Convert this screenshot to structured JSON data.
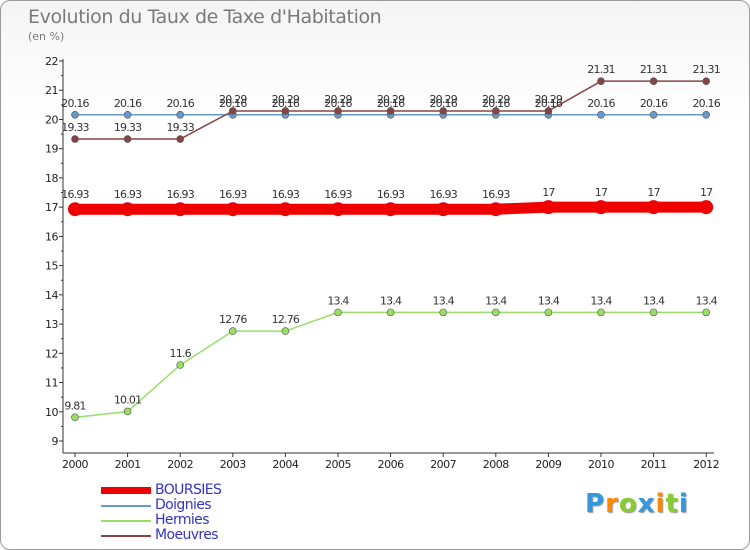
{
  "chart_data": {
    "type": "line",
    "title": "Evolution du Taux de Taxe d'Habitation",
    "ylabel": "(en %)",
    "xlabel": "",
    "ylim": [
      9,
      22
    ],
    "yticks": [
      9,
      10,
      11,
      12,
      13,
      14,
      15,
      16,
      17,
      18,
      19,
      20,
      21,
      22
    ],
    "categories": [
      "2000",
      "2001",
      "2002",
      "2003",
      "2004",
      "2005",
      "2006",
      "2007",
      "2008",
      "2009",
      "2010",
      "2011",
      "2012"
    ],
    "series": [
      {
        "name": "BOURSIES",
        "color": "#ee0000",
        "values": [
          16.93,
          16.93,
          16.93,
          16.93,
          16.93,
          16.93,
          16.93,
          16.93,
          16.93,
          17,
          17,
          17,
          17
        ],
        "labels": [
          "16.93",
          "16.93",
          "16.93",
          "16.93",
          "16.93",
          "16.93",
          "16.93",
          "16.93",
          "16.93",
          "17",
          "17",
          "17",
          "17"
        ]
      },
      {
        "name": "Doignies",
        "color": "#6699cc",
        "values": [
          20.16,
          20.16,
          20.16,
          20.16,
          20.16,
          20.16,
          20.16,
          20.16,
          20.16,
          20.16,
          20.16,
          20.16,
          20.16
        ],
        "labels": [
          "20.16",
          "20.16",
          "20.16",
          "20.16",
          "20.16",
          "20.16",
          "20.16",
          "20.16",
          "20.16",
          "20.16",
          "20.16",
          "20.16",
          "20.16"
        ]
      },
      {
        "name": "Hermies",
        "color": "#99dd66",
        "values": [
          9.81,
          10.01,
          11.6,
          12.76,
          12.76,
          13.4,
          13.4,
          13.4,
          13.4,
          13.4,
          13.4,
          13.4,
          13.4
        ],
        "labels": [
          "9.81",
          "10.01",
          "11.6",
          "12.76",
          "12.76",
          "13.4",
          "13.4",
          "13.4",
          "13.4",
          "13.4",
          "13.4",
          "13.4",
          "13.4"
        ]
      },
      {
        "name": "Moeuvres",
        "color": "#884444",
        "values": [
          19.33,
          19.33,
          19.33,
          20.29,
          20.29,
          20.29,
          20.29,
          20.29,
          20.29,
          20.29,
          21.31,
          21.31,
          21.31
        ],
        "labels": [
          "19.33",
          "19.33",
          "19.33",
          "20.29",
          "20.29",
          "20.29",
          "20.29",
          "20.29",
          "20.29",
          "20.29",
          "21.31",
          "21.31",
          "21.31"
        ]
      }
    ],
    "legend_position": "bottom-left"
  },
  "logo": {
    "text": "Proxiti",
    "letter_colors": [
      "#3399dd",
      "#ff8800",
      "#88cc33",
      "#3399dd",
      "#ff8800",
      "#88cc33",
      "#3399dd"
    ]
  }
}
